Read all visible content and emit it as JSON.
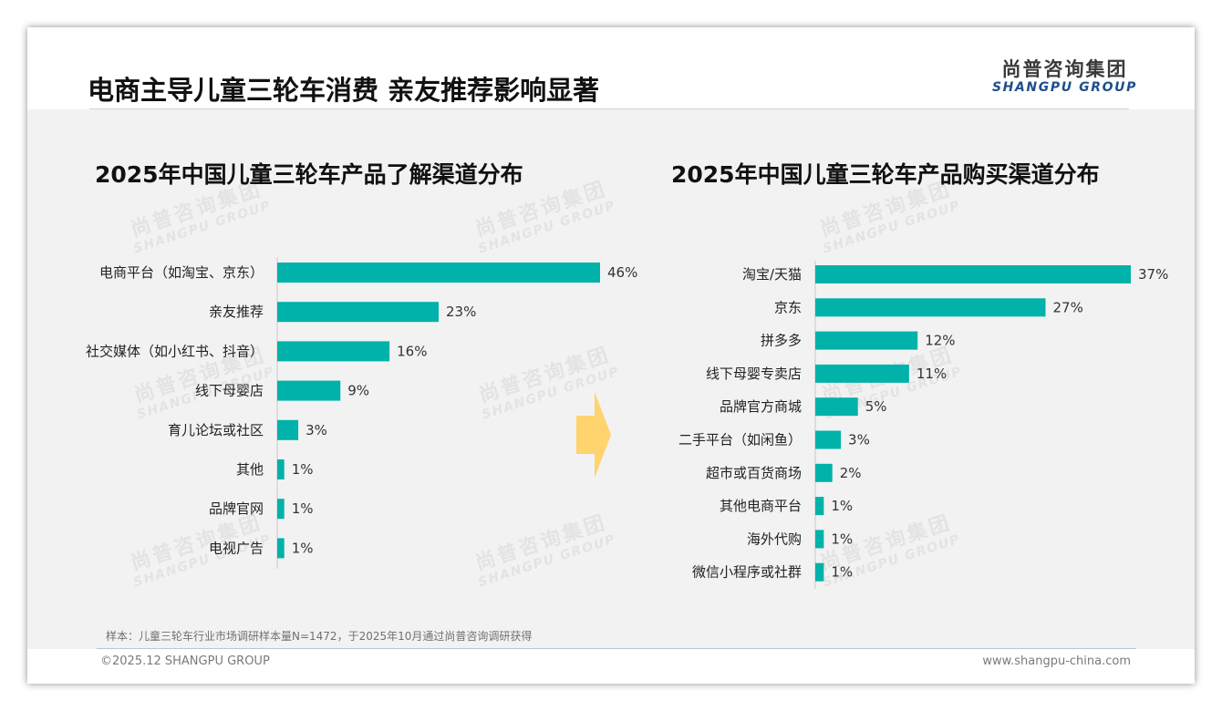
{
  "header": {
    "title": "电商主导儿童三轮车消费 亲友推荐影响显著",
    "logo_cn": "尚普咨询集团",
    "logo_en": "SHANGPU GROUP"
  },
  "watermark": {
    "cn": "尚普咨询集团",
    "en": "SHANGPU GROUP"
  },
  "colors": {
    "bar": "#00b2a9",
    "arrow": "#ffd36e",
    "accent": "#1e4f8a"
  },
  "chart_data": [
    {
      "type": "bar",
      "orientation": "horizontal",
      "title": "2025年中国儿童三轮车产品了解渠道分布",
      "categories": [
        "电商平台（如淘宝、京东）",
        "亲友推荐",
        "社交媒体（如小红书、抖音）",
        "线下母婴店",
        "育儿论坛或社区",
        "其他",
        "品牌官网",
        "电视广告"
      ],
      "values": [
        46,
        23,
        16,
        9,
        3,
        1,
        1,
        1
      ],
      "value_labels": [
        "46%",
        "23%",
        "16%",
        "9%",
        "3%",
        "1%",
        "1%",
        "1%"
      ],
      "unit": "%",
      "xlim": [
        0,
        46
      ],
      "xlabel": "",
      "ylabel": ""
    },
    {
      "type": "bar",
      "orientation": "horizontal",
      "title": "2025年中国儿童三轮车产品购买渠道分布",
      "categories": [
        "淘宝/天猫",
        "京东",
        "拼多多",
        "线下母婴专卖店",
        "品牌官方商城",
        "二手平台（如闲鱼）",
        "超市或百货商场",
        "其他电商平台",
        "海外代购",
        "微信小程序或社群"
      ],
      "values": [
        37,
        27,
        12,
        11,
        5,
        3,
        2,
        1,
        1,
        1
      ],
      "value_labels": [
        "37%",
        "27%",
        "12%",
        "11%",
        "5%",
        "3%",
        "2%",
        "1%",
        "1%",
        "1%"
      ],
      "unit": "%",
      "xlim": [
        0,
        37
      ],
      "xlabel": "",
      "ylabel": ""
    }
  ],
  "footer": {
    "note": "样本：儿童三轮车行业市场调研样本量N=1472，于2025年10月通过尚普咨询调研获得",
    "copyright": "©2025.12 SHANGPU GROUP",
    "website": "www.shangpu-china.com"
  }
}
